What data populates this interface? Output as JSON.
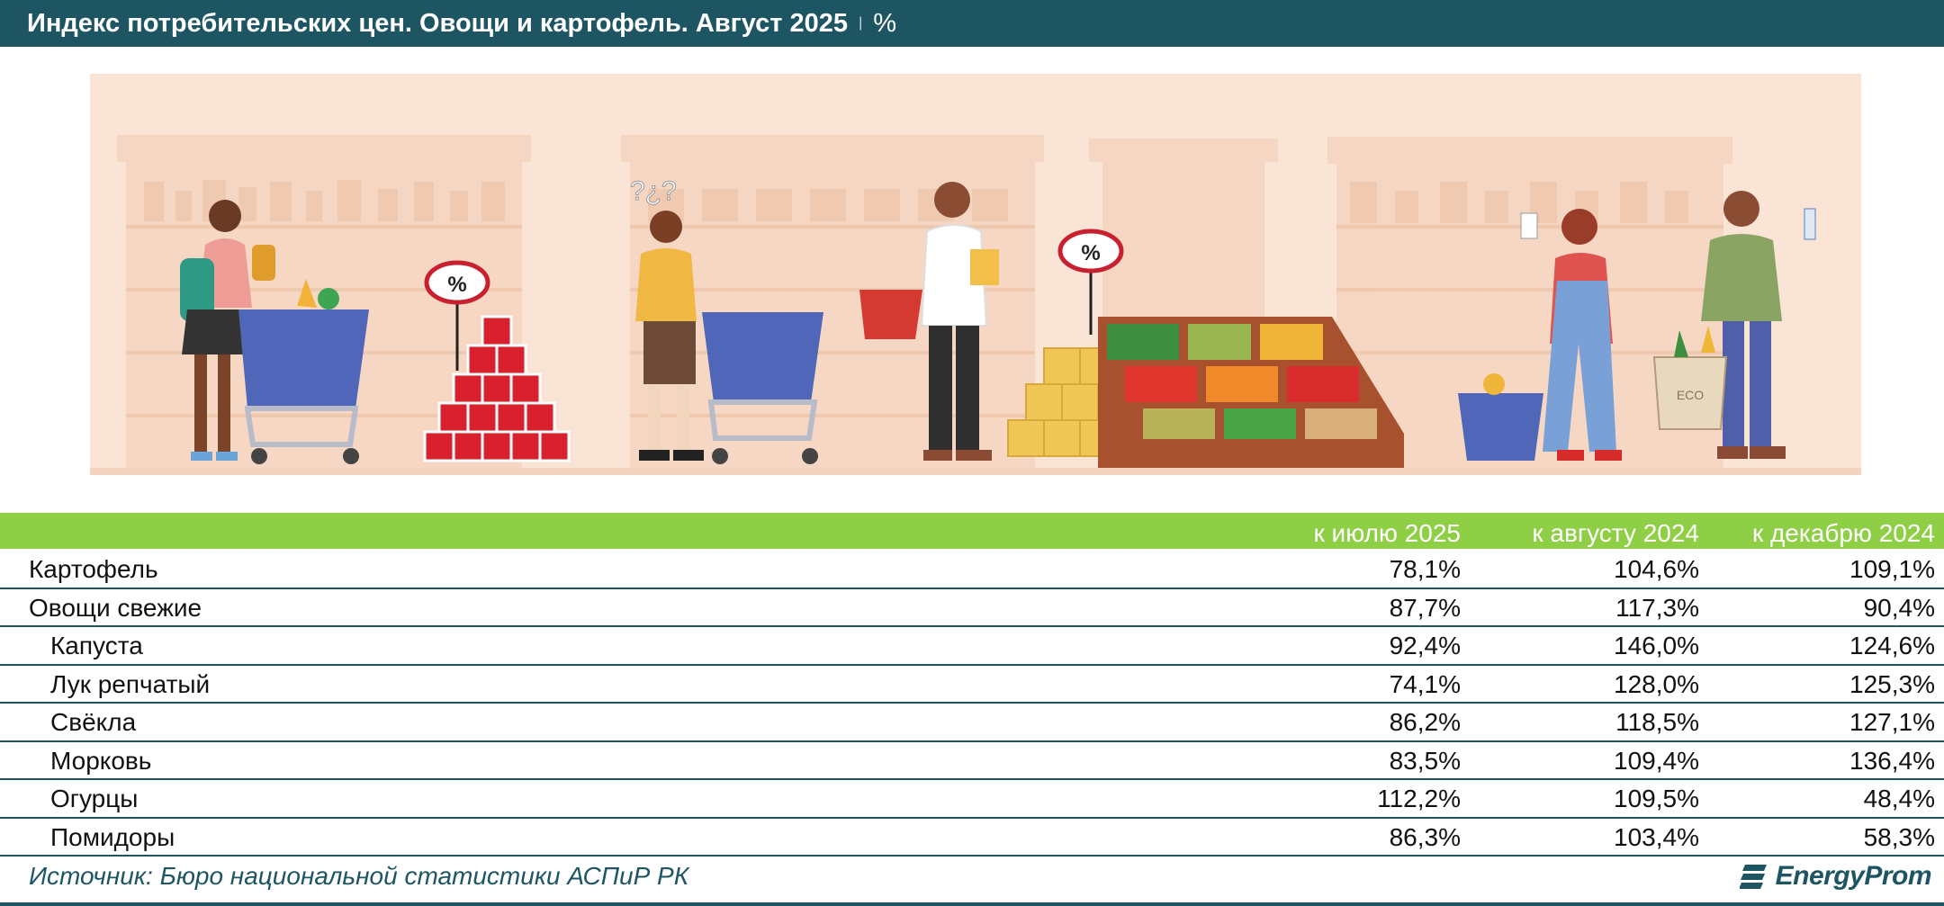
{
  "title": {
    "main": "Индекс потребительских цен. Овощи и картофель. Август 2025",
    "separator": "|",
    "unit": "%"
  },
  "colors": {
    "title_bg": "#1e5562",
    "header_bg": "#8ecf45",
    "row_rule": "#1e5562",
    "illustration_bg": "#fae4d6"
  },
  "illustration": {
    "price_tags": [
      "%",
      "%"
    ],
    "question_marks": "?¿?",
    "bag_label": "ECO"
  },
  "chart_data": {
    "type": "table",
    "columns": [
      "к июлю 2025",
      "к августу 2024",
      "к декабрю 2024"
    ],
    "rows": [
      {
        "label": "Картофель",
        "indent": false,
        "values": [
          "78,1%",
          "104,6%",
          "109,1%"
        ]
      },
      {
        "label": "Овощи свежие",
        "indent": false,
        "values": [
          "87,7%",
          "117,3%",
          "90,4%"
        ]
      },
      {
        "label": "Капуста",
        "indent": true,
        "values": [
          "92,4%",
          "146,0%",
          "124,6%"
        ]
      },
      {
        "label": "Лук репчатый",
        "indent": true,
        "values": [
          "74,1%",
          "128,0%",
          "125,3%"
        ]
      },
      {
        "label": "Свёкла",
        "indent": true,
        "values": [
          "86,2%",
          "118,5%",
          "127,1%"
        ]
      },
      {
        "label": "Морковь",
        "indent": true,
        "values": [
          "83,5%",
          "109,4%",
          "136,4%"
        ]
      },
      {
        "label": "Огурцы",
        "indent": true,
        "values": [
          "112,2%",
          "109,5%",
          "48,4%"
        ]
      },
      {
        "label": "Помидоры",
        "indent": true,
        "values": [
          "86,3%",
          "103,4%",
          "58,3%"
        ]
      }
    ]
  },
  "footer": {
    "source": "Источник: Бюро национальной статистики АСПиР РК",
    "logo_text": "EnergyProm"
  }
}
